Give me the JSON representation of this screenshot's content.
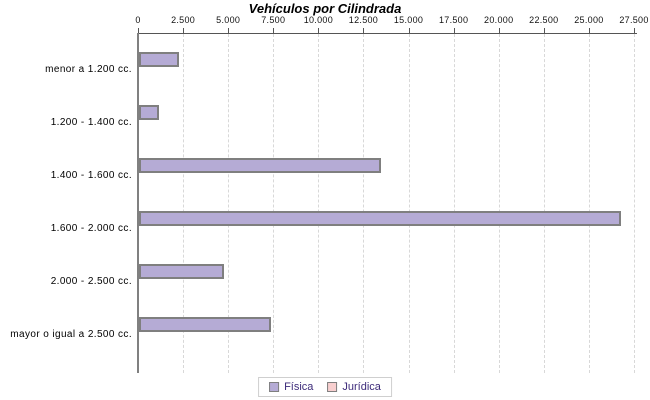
{
  "chart_data": {
    "type": "bar",
    "orientation": "horizontal",
    "title": "Vehículos por Cilindrada",
    "categories": [
      "menor a 1.200 cc.",
      "1.200 - 1.400 cc.",
      "1.400 - 1.600 cc.",
      "1.600 - 2.000 cc.",
      "2.000 - 2.500 cc.",
      "mayor o igual a 2.500 cc."
    ],
    "series": [
      {
        "name": "Física",
        "color": "#b5abd5",
        "values": [
          2200,
          1100,
          13400,
          26700,
          4700,
          7300
        ]
      },
      {
        "name": "Jurídica",
        "color": "#f8cfcf",
        "values": [
          0,
          0,
          0,
          0,
          0,
          0
        ]
      }
    ],
    "xlim": [
      0,
      27500
    ],
    "x_tick_step": 2500,
    "x_tick_labels": [
      "0",
      "2.500",
      "5.000",
      "7.500",
      "10.000",
      "12.500",
      "15.000",
      "17.500",
      "20.000",
      "22.500",
      "25.000",
      "27.500"
    ],
    "grid": true,
    "legend_position": "bottom"
  },
  "colors": {
    "bar_border": "#7f7f7f",
    "axis_line": "#555555",
    "axis_y_line": "#808080",
    "gridline": "#d8d8d8",
    "legend_text": "#3d2b7a",
    "legend_border": "#cfcfcf"
  }
}
